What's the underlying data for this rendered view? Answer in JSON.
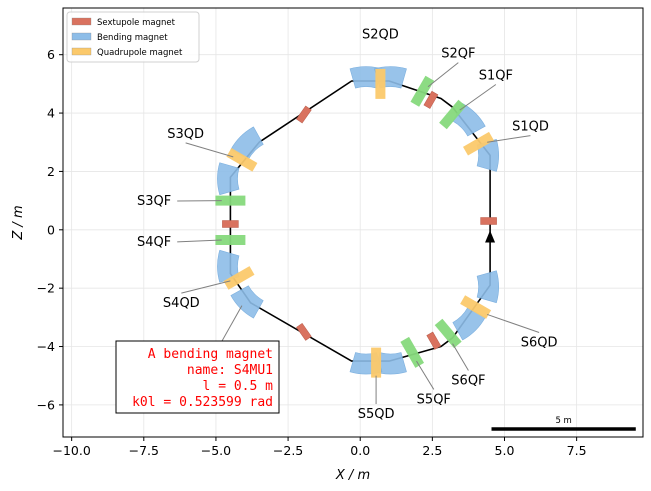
{
  "chart_data": {
    "type": "scatter",
    "title": "",
    "xlabel": "X / m",
    "ylabel": "Z / m",
    "xlim": [
      -10.3,
      9.8
    ],
    "ylim": [
      -7.1,
      7.6
    ],
    "xticks": [
      -10.0,
      -7.5,
      -5.0,
      -2.5,
      0.0,
      2.5,
      5.0,
      7.5
    ],
    "yticks": [
      -6,
      -4,
      -2,
      0,
      2,
      4,
      6
    ],
    "xtick_labels": [
      "−10.0",
      "−7.5",
      "−5.0",
      "−2.5",
      "0.0",
      "2.5",
      "5.0",
      "7.5"
    ],
    "ytick_labels": [
      "−6",
      "−4",
      "−2",
      "0",
      "2",
      "4",
      "6"
    ],
    "grid": true,
    "legend": {
      "position": "top-left",
      "entries": [
        {
          "label": "Sextupole magnet",
          "color": "#d9725f"
        },
        {
          "label": "Bending magnet",
          "color": "#8dbde8"
        },
        {
          "label": "Quadrupole magnet",
          "color": "#fbc96b"
        }
      ]
    },
    "colors": {
      "sextupole": "#d9725f",
      "bending": "#8dbde8",
      "quadrupole": "#fbc96b",
      "quad_green": "#86d97c",
      "orbit": "#000000",
      "annotation_text": "#ff0000"
    },
    "orbit": [
      [
        4.5,
        -0.3
      ],
      [
        4.5,
        2.2
      ],
      [
        4.5,
        2.55
      ],
      [
        3.2,
        4.2
      ],
      [
        2.8,
        4.5
      ],
      [
        1.0,
        5.1
      ],
      [
        -0.3,
        5.1
      ],
      [
        -3.5,
        3.0
      ],
      [
        -4.5,
        1.8
      ],
      [
        -4.5,
        -1.5
      ],
      [
        -3.8,
        -2.5
      ],
      [
        -0.3,
        -4.5
      ],
      [
        1.0,
        -4.5
      ],
      [
        2.8,
        -4.0
      ],
      [
        3.2,
        -3.7
      ],
      [
        4.5,
        -1.9
      ],
      [
        4.5,
        -0.3
      ]
    ],
    "bending_magnets": [
      {
        "x": 0.2,
        "z": 5.25,
        "angle": 90
      },
      {
        "x": 1.05,
        "z": 5.25,
        "angle": 90
      },
      {
        "x": 3.75,
        "z": 3.75,
        "angle": 45
      },
      {
        "x": 4.45,
        "z": 2.55,
        "angle": 0
      },
      {
        "x": 4.45,
        "z": -1.95,
        "angle": 0
      },
      {
        "x": 3.75,
        "z": -3.2,
        "angle": -45
      },
      {
        "x": 1.05,
        "z": -4.6,
        "angle": -90
      },
      {
        "x": 0.2,
        "z": -4.6,
        "angle": -90
      },
      {
        "x": -3.9,
        "z": -2.45,
        "angle": -135
      },
      {
        "x": -4.6,
        "z": -1.25,
        "angle": 180
      },
      {
        "x": -4.6,
        "z": 1.75,
        "angle": 180
      },
      {
        "x": -3.9,
        "z": 2.95,
        "angle": 135
      }
    ],
    "sextupole_magnets": [
      {
        "x": -1.95,
        "z": 3.95,
        "angle": 55
      },
      {
        "x": 2.45,
        "z": 4.45,
        "angle": 60
      },
      {
        "x": 4.45,
        "z": 0.3,
        "angle": 0
      },
      {
        "x": 2.55,
        "z": -3.8,
        "angle": -60
      },
      {
        "x": -1.95,
        "z": -3.5,
        "angle": -55
      },
      {
        "x": -4.5,
        "z": 0.2,
        "angle": 0
      }
    ],
    "quadrupole_magnets": [
      {
        "label": "S2QD",
        "x": 0.7,
        "z": 5.0,
        "angle": 90,
        "color": "yellow"
      },
      {
        "label": "S2QF",
        "x": 2.15,
        "z": 4.75,
        "angle": 60,
        "color": "green"
      },
      {
        "label": "S1QF",
        "x": 3.2,
        "z": 3.95,
        "angle": 50,
        "color": "green"
      },
      {
        "label": "S1QD",
        "x": 4.1,
        "z": 2.95,
        "angle": 30,
        "color": "yellow"
      },
      {
        "label": "S6QD",
        "x": 4.0,
        "z": -2.65,
        "angle": -30,
        "color": "yellow"
      },
      {
        "label": "S6QF",
        "x": 3.05,
        "z": -3.55,
        "angle": -50,
        "color": "green"
      },
      {
        "label": "S5QF",
        "x": 1.8,
        "z": -4.2,
        "angle": -60,
        "color": "green"
      },
      {
        "label": "S5QD",
        "x": 0.55,
        "z": -4.55,
        "angle": -90,
        "color": "yellow"
      },
      {
        "label": "S4QD",
        "x": -4.2,
        "z": -1.65,
        "angle": -150,
        "color": "yellow"
      },
      {
        "label": "S4QF",
        "x": -4.5,
        "z": -0.35,
        "angle": 0,
        "color": "green"
      },
      {
        "label": "S3QF",
        "x": -4.5,
        "z": 1.0,
        "angle": 0,
        "color": "green"
      },
      {
        "label": "S3QD",
        "x": -4.1,
        "z": 2.4,
        "angle": 150,
        "color": "yellow"
      }
    ],
    "labels": [
      {
        "text": "S2QD",
        "tx": 0.7,
        "tz": 6.55,
        "ax": 0.7,
        "az": 5.5,
        "anchor": "middle",
        "line": false
      },
      {
        "text": "S2QF",
        "tx": 3.4,
        "tz": 5.9,
        "ax": 2.35,
        "az": 4.9,
        "anchor": "middle",
        "line": true
      },
      {
        "text": "S1QF",
        "tx": 4.7,
        "tz": 5.15,
        "ax": 3.45,
        "az": 4.1,
        "anchor": "middle",
        "line": true
      },
      {
        "text": "S1QD",
        "tx": 5.9,
        "tz": 3.4,
        "ax": 4.4,
        "az": 3.0,
        "anchor": "middle",
        "line": true
      },
      {
        "text": "S6QD",
        "tx": 6.2,
        "tz": -4.0,
        "ax": 4.4,
        "az": -2.9,
        "anchor": "middle",
        "line": true
      },
      {
        "text": "S6QF",
        "tx": 3.75,
        "tz": -5.3,
        "ax": 3.2,
        "az": -3.9,
        "anchor": "middle",
        "line": true
      },
      {
        "text": "S5QF",
        "tx": 2.55,
        "tz": -5.95,
        "ax": 1.95,
        "az": -4.5,
        "anchor": "middle",
        "line": true
      },
      {
        "text": "S5QD",
        "tx": 0.55,
        "tz": -6.45,
        "ax": 0.55,
        "az": -5.0,
        "anchor": "middle",
        "line": true
      },
      {
        "text": "S4QD",
        "tx": -6.2,
        "tz": -2.65,
        "ax": -4.5,
        "az": -1.75,
        "anchor": "middle",
        "line": true
      },
      {
        "text": "S4QF",
        "tx": -6.55,
        "tz": -0.55,
        "ax": -4.8,
        "az": -0.35,
        "anchor": "end",
        "line": true
      },
      {
        "text": "S3QF",
        "tx": -6.55,
        "tz": 0.85,
        "ax": -4.8,
        "az": 1.0,
        "anchor": "end",
        "line": true
      },
      {
        "text": "S3QD",
        "tx": -6.05,
        "tz": 3.15,
        "ax": -4.4,
        "az": 2.5,
        "anchor": "middle",
        "line": true
      }
    ],
    "direction_arrow": {
      "x": 4.5,
      "z": -0.3
    },
    "annotation": {
      "lines": [
        "A bending magnet",
        "name: S4MU1",
        "l = 0.5 m",
        "k0l = 0.523599 rad"
      ],
      "pointer_x": -4.1,
      "pointer_z": -2.6
    },
    "scale_bar": {
      "label": "5 m",
      "length_m": 5.0
    }
  }
}
